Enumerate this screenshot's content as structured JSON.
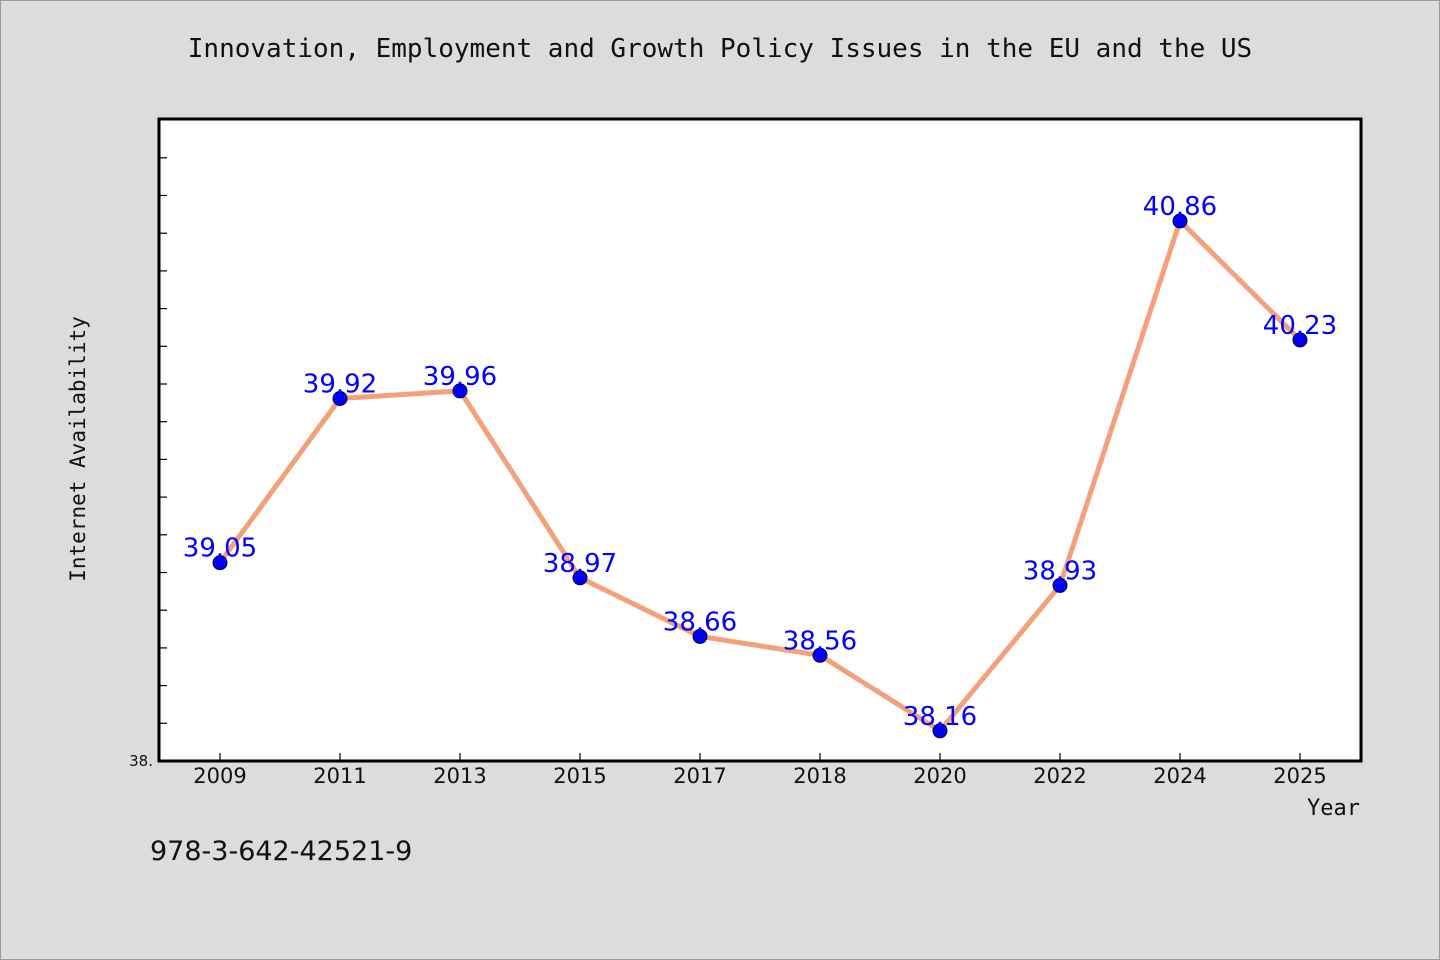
{
  "chart_data": {
    "type": "line",
    "title": "Innovation, Employment and Growth Policy Issues in the EU and the US",
    "xlabel": "Year",
    "ylabel": "Internet Availability",
    "categories": [
      "2009",
      "2011",
      "2013",
      "2015",
      "2017",
      "2018",
      "2020",
      "2022",
      "2024",
      "2025"
    ],
    "series": [
      {
        "values": [
          39.05,
          39.92,
          39.96,
          38.97,
          38.66,
          38.56,
          38.16,
          38.93,
          40.86,
          40.23
        ]
      }
    ],
    "data_labels": [
      "39.05",
      "39.92",
      "39.96",
      "38.97",
      "38.66",
      "38.56",
      "38.16",
      "38.93",
      "40.86",
      "40.23"
    ],
    "ylim": [
      38.0,
      41.4
    ],
    "y_tick_label": "38.",
    "grid": false,
    "legend": "none",
    "colors": {
      "line": "#f4a07a",
      "marker": "#0000ff",
      "label": "#0000ff",
      "background": "#dcdcdc",
      "plot_background": "#ffffff"
    }
  },
  "footnote": "978-3-642-42521-9"
}
